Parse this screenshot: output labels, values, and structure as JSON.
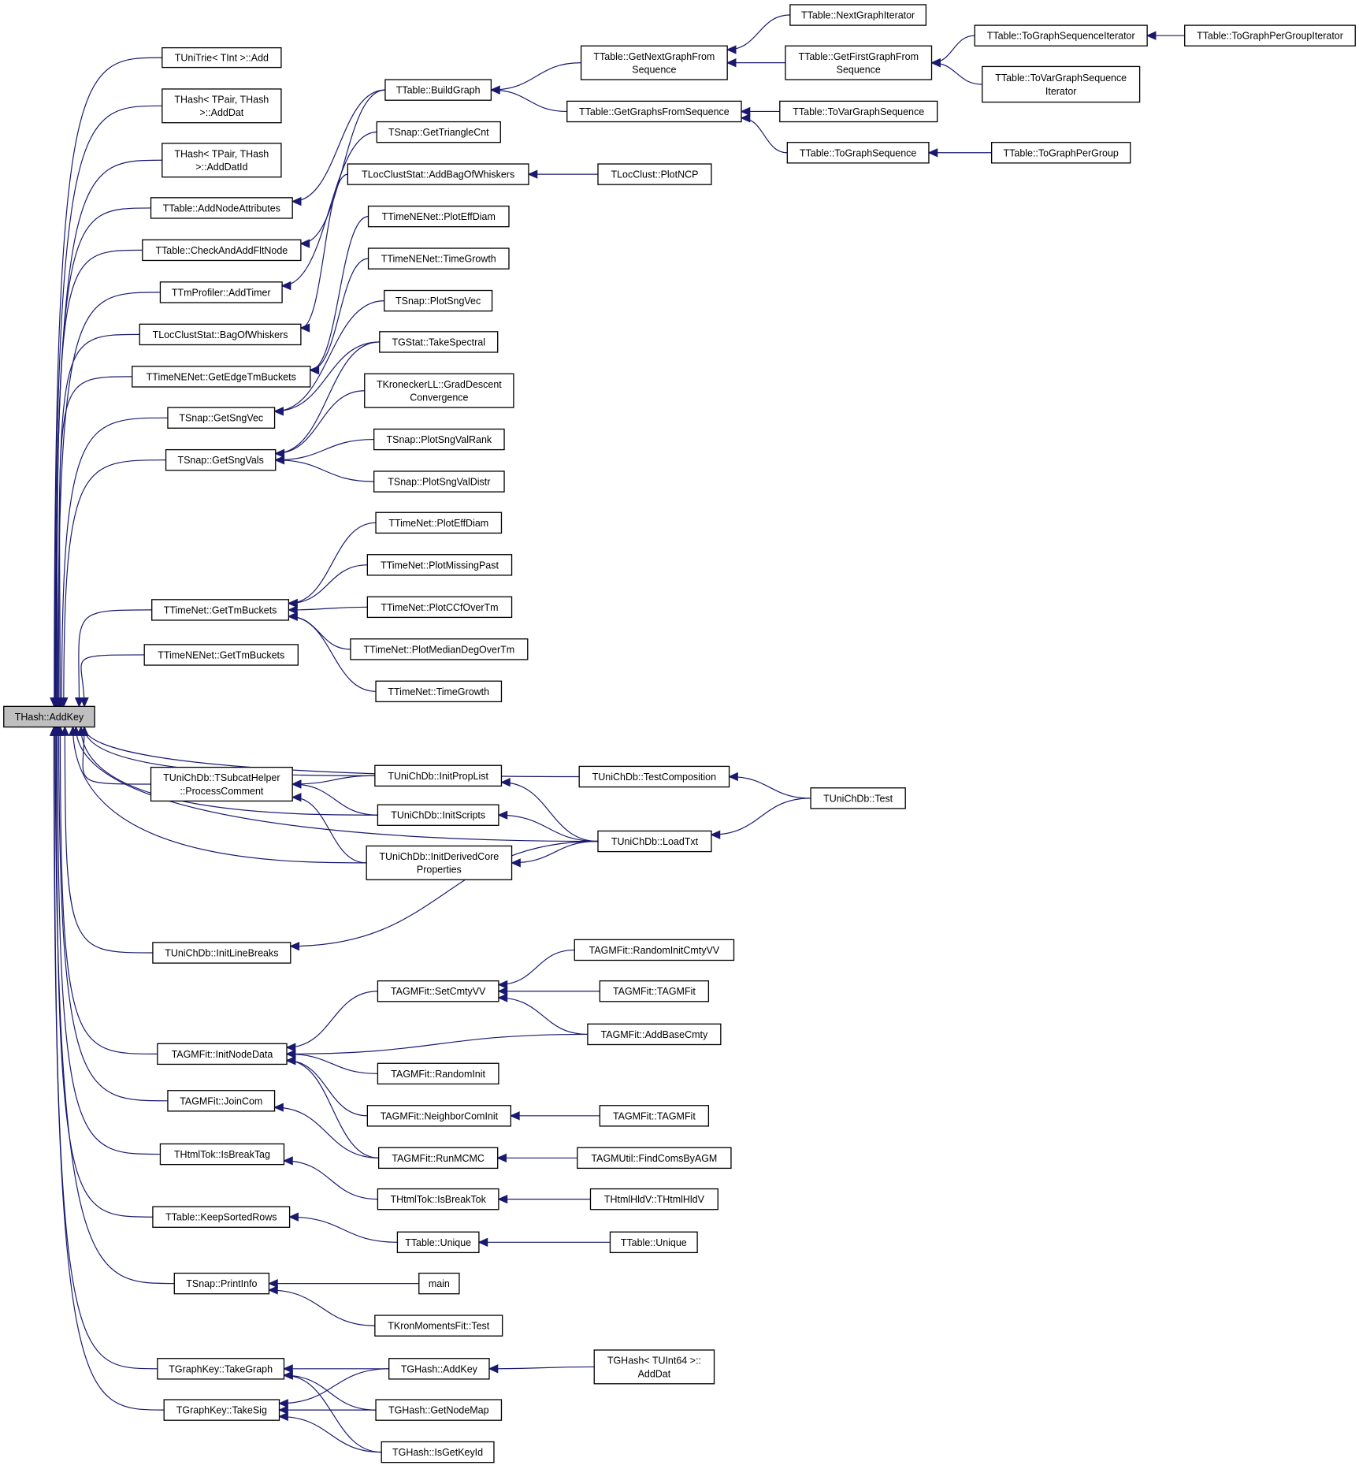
{
  "colors": {
    "edge": "#191970",
    "root_fill": "#bfbfbf",
    "node_fill": "#ffffff",
    "node_border": "#000000"
  },
  "root": "addkey",
  "nodes": [
    {
      "id": "addkey",
      "lines": [
        "THash::AddKey"
      ]
    },
    {
      "id": "unitrie_add",
      "lines": [
        "TUniTrie< TInt >::Add"
      ]
    },
    {
      "id": "thash_adddat",
      "lines": [
        "THash< TPair, THash",
        ">::AddDat"
      ]
    },
    {
      "id": "thash_adddatid",
      "lines": [
        "THash< TPair, THash",
        ">::AddDatId"
      ]
    },
    {
      "id": "addnodeattr",
      "lines": [
        "TTable::AddNodeAttributes"
      ]
    },
    {
      "id": "checkaddflt",
      "lines": [
        "TTable::CheckAndAddFltNode"
      ]
    },
    {
      "id": "addtimer",
      "lines": [
        "TTmProfiler::AddTimer"
      ]
    },
    {
      "id": "bagofwhiskers",
      "lines": [
        "TLocClustStat::BagOfWhiskers"
      ]
    },
    {
      "id": "getedgetmbuckets",
      "lines": [
        "TTimeNENet::GetEdgeTmBuckets"
      ]
    },
    {
      "id": "getsngvec",
      "lines": [
        "TSnap::GetSngVec"
      ]
    },
    {
      "id": "getsngvals",
      "lines": [
        "TSnap::GetSngVals"
      ]
    },
    {
      "id": "tn_gettmbuckets",
      "lines": [
        "TTimeNet::GetTmBuckets"
      ]
    },
    {
      "id": "tne_gettmbuckets",
      "lines": [
        "TTimeNENet::GetTmBuckets"
      ]
    },
    {
      "id": "processcomment",
      "lines": [
        "TUniChDb::TSubcatHelper",
        "::ProcessComment"
      ]
    },
    {
      "id": "initlinebreaks",
      "lines": [
        "TUniChDb::InitLineBreaks"
      ]
    },
    {
      "id": "initnodedata",
      "lines": [
        "TAGMFit::InitNodeData"
      ]
    },
    {
      "id": "joincom",
      "lines": [
        "TAGMFit::JoinCom"
      ]
    },
    {
      "id": "isbreaktag",
      "lines": [
        "THtmlTok::IsBreakTag"
      ]
    },
    {
      "id": "keepsortedrows",
      "lines": [
        "TTable::KeepSortedRows"
      ]
    },
    {
      "id": "printinfo",
      "lines": [
        "TSnap::PrintInfo"
      ]
    },
    {
      "id": "takegraph",
      "lines": [
        "TGraphKey::TakeGraph"
      ]
    },
    {
      "id": "takesig",
      "lines": [
        "TGraphKey::TakeSig"
      ]
    },
    {
      "id": "buildgraph",
      "lines": [
        "TTable::BuildGraph"
      ]
    },
    {
      "id": "gettrianglecnt",
      "lines": [
        "TSnap::GetTriangleCnt"
      ]
    },
    {
      "id": "addbagofwhiskers",
      "lines": [
        "TLocClustStat::AddBagOfWhiskers"
      ]
    },
    {
      "id": "tne_ploteffdiam",
      "lines": [
        "TTimeNENet::PlotEffDiam"
      ]
    },
    {
      "id": "tne_timegrowth",
      "lines": [
        "TTimeNENet::TimeGrowth"
      ]
    },
    {
      "id": "plotsngvec",
      "lines": [
        "TSnap::PlotSngVec"
      ]
    },
    {
      "id": "takespectral",
      "lines": [
        "TGStat::TakeSpectral"
      ]
    },
    {
      "id": "graddescent",
      "lines": [
        "TKroneckerLL::GradDescent",
        "Convergence"
      ]
    },
    {
      "id": "plotsngvalrank",
      "lines": [
        "TSnap::PlotSngValRank"
      ]
    },
    {
      "id": "plotsngvaldistr",
      "lines": [
        "TSnap::PlotSngValDistr"
      ]
    },
    {
      "id": "tn_ploteffdiam",
      "lines": [
        "TTimeNet::PlotEffDiam"
      ]
    },
    {
      "id": "tn_plotmissingpast",
      "lines": [
        "TTimeNet::PlotMissingPast"
      ]
    },
    {
      "id": "tn_plotccf",
      "lines": [
        "TTimeNet::PlotCCfOverTm"
      ]
    },
    {
      "id": "tn_plotmediandeg",
      "lines": [
        "TTimeNet::PlotMedianDegOverTm"
      ]
    },
    {
      "id": "tn_timegrowth",
      "lines": [
        "TTimeNet::TimeGrowth"
      ]
    },
    {
      "id": "initproplist",
      "lines": [
        "TUniChDb::InitPropList"
      ]
    },
    {
      "id": "initscripts",
      "lines": [
        "TUniChDb::InitScripts"
      ]
    },
    {
      "id": "initderivedcore",
      "lines": [
        "TUniChDb::InitDerivedCore",
        "Properties"
      ]
    },
    {
      "id": "setcmtyvv",
      "lines": [
        "TAGMFit::SetCmtyVV"
      ]
    },
    {
      "id": "randominit",
      "lines": [
        "TAGMFit::RandomInit"
      ]
    },
    {
      "id": "neighborcominit",
      "lines": [
        "TAGMFit::NeighborComInit"
      ]
    },
    {
      "id": "runmcmc",
      "lines": [
        "TAGMFit::RunMCMC"
      ]
    },
    {
      "id": "isbreaktok",
      "lines": [
        "THtmlTok::IsBreakTok"
      ]
    },
    {
      "id": "unique1",
      "lines": [
        "TTable::Unique"
      ]
    },
    {
      "id": "main",
      "lines": [
        "main"
      ]
    },
    {
      "id": "kronmomentstest",
      "lines": [
        "TKronMomentsFit::Test"
      ]
    },
    {
      "id": "tghash_addkey",
      "lines": [
        "TGHash::AddKey"
      ]
    },
    {
      "id": "getnodemap",
      "lines": [
        "TGHash::GetNodeMap"
      ]
    },
    {
      "id": "isgetkeyid",
      "lines": [
        "TGHash::IsGetKeyId"
      ]
    },
    {
      "id": "getnextgraph",
      "lines": [
        "TTable::GetNextGraphFrom",
        "Sequence"
      ]
    },
    {
      "id": "getgraphsfromseq",
      "lines": [
        "TTable::GetGraphsFromSequence"
      ]
    },
    {
      "id": "plotncp",
      "lines": [
        "TLocClust::PlotNCP"
      ]
    },
    {
      "id": "testcomposition",
      "lines": [
        "TUniChDb::TestComposition"
      ]
    },
    {
      "id": "loadtxt",
      "lines": [
        "TUniChDb::LoadTxt"
      ]
    },
    {
      "id": "randominitcmtyvv",
      "lines": [
        "TAGMFit::RandomInitCmtyVV"
      ]
    },
    {
      "id": "tagmfit1",
      "lines": [
        "TAGMFit::TAGMFit"
      ]
    },
    {
      "id": "addbasecmty",
      "lines": [
        "TAGMFit::AddBaseCmty"
      ]
    },
    {
      "id": "tagmfit2",
      "lines": [
        "TAGMFit::TAGMFit"
      ]
    },
    {
      "id": "findcomsbyagm",
      "lines": [
        "TAGMUtil::FindComsByAGM"
      ]
    },
    {
      "id": "thtmlhldv",
      "lines": [
        "THtmlHldV::THtmlHldV"
      ]
    },
    {
      "id": "unique2",
      "lines": [
        "TTable::Unique"
      ]
    },
    {
      "id": "tghash_adddat",
      "lines": [
        "TGHash< TUInt64 >::",
        "AddDat"
      ]
    },
    {
      "id": "nextgraphiter",
      "lines": [
        "TTable::NextGraphIterator"
      ]
    },
    {
      "id": "getfirstgraph",
      "lines": [
        "TTable::GetFirstGraphFrom",
        "Sequence"
      ]
    },
    {
      "id": "tovargraphseq",
      "lines": [
        "TTable::ToVarGraphSequence"
      ]
    },
    {
      "id": "tographseq",
      "lines": [
        "TTable::ToGraphSequence"
      ]
    },
    {
      "id": "unichdb_test",
      "lines": [
        "TUniChDb::Test"
      ]
    },
    {
      "id": "tographseqiter",
      "lines": [
        "TTable::ToGraphSequenceIterator"
      ]
    },
    {
      "id": "tovargraphseqiter",
      "lines": [
        "TTable::ToVarGraphSequence",
        "Iterator"
      ]
    },
    {
      "id": "tographpergroupiter",
      "lines": [
        "TTable::ToGraphPerGroupIterator"
      ]
    },
    {
      "id": "tographpergroup",
      "lines": [
        "TTable::ToGraphPerGroup"
      ]
    }
  ],
  "edges": [
    [
      "unitrie_add",
      "addkey"
    ],
    [
      "thash_adddat",
      "addkey"
    ],
    [
      "thash_adddatid",
      "addkey"
    ],
    [
      "addnodeattr",
      "addkey"
    ],
    [
      "checkaddflt",
      "addkey"
    ],
    [
      "addtimer",
      "addkey"
    ],
    [
      "bagofwhiskers",
      "addkey"
    ],
    [
      "getedgetmbuckets",
      "addkey"
    ],
    [
      "getsngvec",
      "addkey"
    ],
    [
      "getsngvals",
      "addkey"
    ],
    [
      "tn_gettmbuckets",
      "addkey"
    ],
    [
      "tne_gettmbuckets",
      "addkey"
    ],
    [
      "processcomment",
      "addkey"
    ],
    [
      "initlinebreaks",
      "addkey"
    ],
    [
      "initnodedata",
      "addkey"
    ],
    [
      "joincom",
      "addkey"
    ],
    [
      "isbreaktag",
      "addkey"
    ],
    [
      "keepsortedrows",
      "addkey"
    ],
    [
      "printinfo",
      "addkey"
    ],
    [
      "takegraph",
      "addkey"
    ],
    [
      "takesig",
      "addkey"
    ],
    [
      "initproplist",
      "addkey"
    ],
    [
      "initscripts",
      "addkey"
    ],
    [
      "initderivedcore",
      "addkey"
    ],
    [
      "testcomposition",
      "addkey"
    ],
    [
      "loadtxt",
      "addkey"
    ],
    [
      "buildgraph",
      "addnodeattr"
    ],
    [
      "buildgraph",
      "checkaddflt"
    ],
    [
      "gettrianglecnt",
      "addtimer"
    ],
    [
      "addbagofwhiskers",
      "bagofwhiskers"
    ],
    [
      "tne_ploteffdiam",
      "getedgetmbuckets"
    ],
    [
      "tne_timegrowth",
      "getedgetmbuckets"
    ],
    [
      "plotsngvec",
      "getsngvec"
    ],
    [
      "takespectral",
      "getsngvec"
    ],
    [
      "takespectral",
      "getsngvals"
    ],
    [
      "graddescent",
      "getsngvals"
    ],
    [
      "plotsngvalrank",
      "getsngvals"
    ],
    [
      "plotsngvaldistr",
      "getsngvals"
    ],
    [
      "tn_ploteffdiam",
      "tn_gettmbuckets"
    ],
    [
      "tn_plotmissingpast",
      "tn_gettmbuckets"
    ],
    [
      "tn_plotccf",
      "tn_gettmbuckets"
    ],
    [
      "tn_plotmediandeg",
      "tn_gettmbuckets"
    ],
    [
      "tn_timegrowth",
      "tn_gettmbuckets"
    ],
    [
      "initproplist",
      "processcomment"
    ],
    [
      "initscripts",
      "processcomment"
    ],
    [
      "initderivedcore",
      "processcomment"
    ],
    [
      "loadtxt",
      "initlinebreaks"
    ],
    [
      "setcmtyvv",
      "initnodedata"
    ],
    [
      "addbasecmty",
      "initnodedata"
    ],
    [
      "randominit",
      "initnodedata"
    ],
    [
      "neighborcominit",
      "initnodedata"
    ],
    [
      "runmcmc",
      "initnodedata"
    ],
    [
      "runmcmc",
      "joincom"
    ],
    [
      "isbreaktok",
      "isbreaktag"
    ],
    [
      "unique1",
      "keepsortedrows"
    ],
    [
      "main",
      "printinfo"
    ],
    [
      "kronmomentstest",
      "printinfo"
    ],
    [
      "tghash_addkey",
      "takegraph"
    ],
    [
      "getnodemap",
      "takegraph"
    ],
    [
      "isgetkeyid",
      "takegraph"
    ],
    [
      "tghash_addkey",
      "takesig"
    ],
    [
      "getnodemap",
      "takesig"
    ],
    [
      "isgetkeyid",
      "takesig"
    ],
    [
      "getnextgraph",
      "buildgraph"
    ],
    [
      "getgraphsfromseq",
      "buildgraph"
    ],
    [
      "plotncp",
      "addbagofwhiskers"
    ],
    [
      "loadtxt",
      "initproplist"
    ],
    [
      "loadtxt",
      "initscripts"
    ],
    [
      "loadtxt",
      "initderivedcore"
    ],
    [
      "randominitcmtyvv",
      "setcmtyvv"
    ],
    [
      "tagmfit1",
      "setcmtyvv"
    ],
    [
      "addbasecmty",
      "setcmtyvv"
    ],
    [
      "tagmfit2",
      "neighborcominit"
    ],
    [
      "findcomsbyagm",
      "runmcmc"
    ],
    [
      "thtmlhldv",
      "isbreaktok"
    ],
    [
      "unique2",
      "unique1"
    ],
    [
      "tghash_adddat",
      "tghash_addkey"
    ],
    [
      "unichdb_test",
      "testcomposition"
    ],
    [
      "unichdb_test",
      "loadtxt"
    ],
    [
      "nextgraphiter",
      "getnextgraph"
    ],
    [
      "getfirstgraph",
      "getnextgraph"
    ],
    [
      "tovargraphseq",
      "getgraphsfromseq"
    ],
    [
      "tographseq",
      "getgraphsfromseq"
    ],
    [
      "tographseqiter",
      "getfirstgraph"
    ],
    [
      "tovargraphseqiter",
      "getfirstgraph"
    ],
    [
      "tographpergroup",
      "tographseq"
    ],
    [
      "tographpergroupiter",
      "tographseqiter"
    ]
  ]
}
